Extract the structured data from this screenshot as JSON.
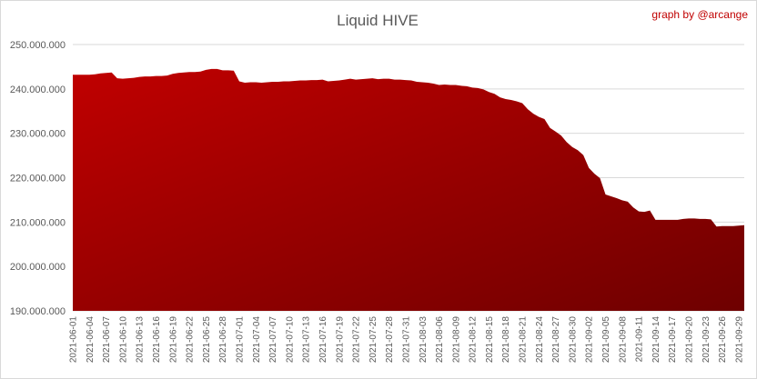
{
  "chart_data": {
    "type": "area",
    "title": "Liquid HIVE",
    "credit": "graph by @arcange",
    "xlabel": "",
    "ylabel": "",
    "ylim": [
      190000000,
      250000000
    ],
    "yticks": [
      190000000,
      200000000,
      210000000,
      220000000,
      230000000,
      240000000,
      250000000
    ],
    "ytick_labels": [
      "190.000.000",
      "200.000.000",
      "210.000.000",
      "220.000.000",
      "230.000.000",
      "240.000.000",
      "250.000.000"
    ],
    "grid": true,
    "legend": "none",
    "color_top": "#c00000",
    "color_bottom": "#6e0000",
    "x_tick_labels": [
      "2021-06-01",
      "2021-06-04",
      "2021-06-07",
      "2021-06-10",
      "2021-06-13",
      "2021-06-16",
      "2021-06-19",
      "2021-06-22",
      "2021-06-25",
      "2021-06-28",
      "2021-07-01",
      "2021-07-04",
      "2021-07-07",
      "2021-07-10",
      "2021-07-13",
      "2021-07-16",
      "2021-07-19",
      "2021-07-22",
      "2021-07-25",
      "2021-07-28",
      "2021-07-31",
      "2021-08-03",
      "2021-08-06",
      "2021-08-09",
      "2021-08-12",
      "2021-08-15",
      "2021-08-18",
      "2021-08-21",
      "2021-08-24",
      "2021-08-27",
      "2021-08-30",
      "2021-09-02",
      "2021-09-05",
      "2021-09-08",
      "2021-09-11",
      "2021-09-14",
      "2021-09-17",
      "2021-09-20",
      "2021-09-23",
      "2021-09-26",
      "2021-09-29"
    ],
    "x": [
      "2021-06-01",
      "2021-06-02",
      "2021-06-03",
      "2021-06-04",
      "2021-06-05",
      "2021-06-06",
      "2021-06-07",
      "2021-06-08",
      "2021-06-09",
      "2021-06-10",
      "2021-06-11",
      "2021-06-12",
      "2021-06-13",
      "2021-06-14",
      "2021-06-15",
      "2021-06-16",
      "2021-06-17",
      "2021-06-18",
      "2021-06-19",
      "2021-06-20",
      "2021-06-21",
      "2021-06-22",
      "2021-06-23",
      "2021-06-24",
      "2021-06-25",
      "2021-06-26",
      "2021-06-27",
      "2021-06-28",
      "2021-06-29",
      "2021-06-30",
      "2021-07-01",
      "2021-07-02",
      "2021-07-03",
      "2021-07-04",
      "2021-07-05",
      "2021-07-06",
      "2021-07-07",
      "2021-07-08",
      "2021-07-09",
      "2021-07-10",
      "2021-07-11",
      "2021-07-12",
      "2021-07-13",
      "2021-07-14",
      "2021-07-15",
      "2021-07-16",
      "2021-07-17",
      "2021-07-18",
      "2021-07-19",
      "2021-07-20",
      "2021-07-21",
      "2021-07-22",
      "2021-07-23",
      "2021-07-24",
      "2021-07-25",
      "2021-07-26",
      "2021-07-27",
      "2021-07-28",
      "2021-07-29",
      "2021-07-30",
      "2021-07-31",
      "2021-08-01",
      "2021-08-02",
      "2021-08-03",
      "2021-08-04",
      "2021-08-05",
      "2021-08-06",
      "2021-08-07",
      "2021-08-08",
      "2021-08-09",
      "2021-08-10",
      "2021-08-11",
      "2021-08-12",
      "2021-08-13",
      "2021-08-14",
      "2021-08-15",
      "2021-08-16",
      "2021-08-17",
      "2021-08-18",
      "2021-08-19",
      "2021-08-20",
      "2021-08-21",
      "2021-08-22",
      "2021-08-23",
      "2021-08-24",
      "2021-08-25",
      "2021-08-26",
      "2021-08-27",
      "2021-08-28",
      "2021-08-29",
      "2021-08-30",
      "2021-08-31",
      "2021-09-01",
      "2021-09-02",
      "2021-09-03",
      "2021-09-04",
      "2021-09-05",
      "2021-09-06",
      "2021-09-07",
      "2021-09-08",
      "2021-09-09",
      "2021-09-10",
      "2021-09-11",
      "2021-09-12",
      "2021-09-13",
      "2021-09-14",
      "2021-09-15",
      "2021-09-16",
      "2021-09-17",
      "2021-09-18",
      "2021-09-19",
      "2021-09-20",
      "2021-09-21",
      "2021-09-22",
      "2021-09-23",
      "2021-09-24",
      "2021-09-25",
      "2021-09-26",
      "2021-09-27",
      "2021-09-28",
      "2021-09-29",
      "2021-09-30"
    ],
    "series": [
      {
        "values": [
          243200000,
          243200000,
          243200000,
          243200000,
          243300000,
          243500000,
          243600000,
          243700000,
          242400000,
          242300000,
          242400000,
          242500000,
          242700000,
          242800000,
          242800000,
          242900000,
          242900000,
          243000000,
          243400000,
          243600000,
          243700000,
          243800000,
          243800000,
          243900000,
          244300000,
          244500000,
          244500000,
          244200000,
          244200000,
          244100000,
          241700000,
          241400000,
          241500000,
          241500000,
          241400000,
          241500000,
          241600000,
          241600000,
          241700000,
          241700000,
          241800000,
          241900000,
          241900000,
          242000000,
          242000000,
          242100000,
          241700000,
          241800000,
          241900000,
          242100000,
          242300000,
          242100000,
          242200000,
          242300000,
          242400000,
          242200000,
          242300000,
          242300000,
          242100000,
          242100000,
          242000000,
          241900000,
          241600000,
          241500000,
          241400000,
          241200000,
          240900000,
          241000000,
          240900000,
          240900000,
          240700000,
          240600000,
          240300000,
          240200000,
          239900000,
          239300000,
          238900000,
          238100000,
          237700000,
          237500000,
          237200000,
          236800000,
          235400000,
          234400000,
          233700000,
          233200000,
          231200000,
          230400000,
          229500000,
          228000000,
          226900000,
          226200000,
          225100000,
          222200000,
          220900000,
          219900000,
          216200000,
          215800000,
          215400000,
          214900000,
          214600000,
          213300000,
          212400000,
          212300000,
          212600000,
          210500000,
          210500000,
          210500000,
          210500000,
          210500000,
          210700000,
          210800000,
          210800000,
          210700000,
          210700000,
          210600000,
          209000000,
          209100000,
          209100000,
          209100000,
          209200000,
          209300000
        ]
      }
    ]
  }
}
